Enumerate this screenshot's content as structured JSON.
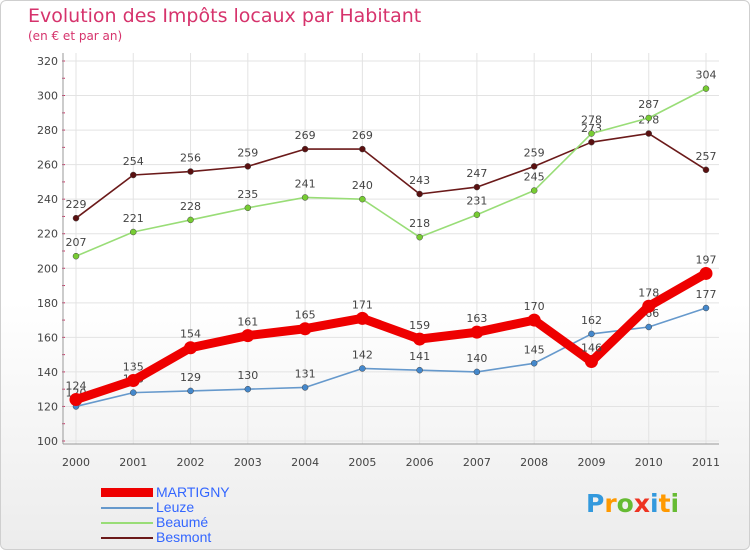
{
  "chart_data": {
    "type": "line",
    "title": "Evolution des Impôts locaux par Habitant",
    "subtitle": "(en € et par an)",
    "xlabel": "",
    "ylabel": "",
    "ylim": [
      100,
      320
    ],
    "y_ticks": [
      100,
      120,
      140,
      160,
      180,
      200,
      220,
      240,
      260,
      280,
      300,
      320
    ],
    "x": [
      "2000",
      "2001",
      "2002",
      "2003",
      "2004",
      "2005",
      "2006",
      "2007",
      "2008",
      "2009",
      "2010",
      "2011"
    ],
    "grid": true,
    "legend_position": "bottom-left",
    "series": [
      {
        "name": "Besmont",
        "color": "#6b1a1a",
        "marker": "#5a1010",
        "values": [
          229,
          254,
          256,
          259,
          269,
          269,
          243,
          247,
          259,
          273,
          278,
          257
        ],
        "labels": [
          "229",
          "254",
          "256",
          "259",
          "269",
          "269",
          "243",
          "247",
          "259",
          "273",
          "278",
          "257"
        ]
      },
      {
        "name": "Beaumé",
        "color": "#99dd77",
        "marker": "#77cc33",
        "values": [
          207,
          221,
          228,
          235,
          241,
          240,
          218,
          231,
          245,
          278,
          287,
          304
        ],
        "labels": [
          "207",
          "221",
          "228",
          "235",
          "241",
          "240",
          "218",
          "231",
          "245",
          "278",
          "287",
          "304"
        ]
      },
      {
        "name": "Leuze",
        "color": "#6699cc",
        "marker": "#4488cc",
        "values": [
          120,
          128,
          129,
          130,
          131,
          142,
          141,
          140,
          145,
          162,
          166,
          177
        ],
        "labels": [
          "120",
          "128",
          "129",
          "130",
          "131",
          "142",
          "141",
          "140",
          "145",
          "162",
          "166",
          "177"
        ]
      },
      {
        "name": "MARTIGNY",
        "color": "#ee0000",
        "marker": "#ee0000",
        "values": [
          124,
          135,
          154,
          161,
          165,
          171,
          159,
          163,
          170,
          146,
          178,
          197
        ],
        "labels": [
          "124",
          "135",
          "154",
          "161",
          "165",
          "171",
          "159",
          "163",
          "170",
          "146",
          "178",
          "197"
        ]
      }
    ],
    "legend": [
      {
        "name": "MARTIGNY",
        "color": "#ee0000",
        "text_color": "#3366ff"
      },
      {
        "name": "Leuze",
        "color": "#6699cc",
        "text_color": "#3366ff"
      },
      {
        "name": "Beaumé",
        "color": "#99dd77",
        "text_color": "#3366ff"
      },
      {
        "name": "Besmont",
        "color": "#6b1a1a",
        "text_color": "#3366ff"
      }
    ]
  },
  "logo": {
    "letters": [
      "P",
      "r",
      "o",
      "x",
      "i",
      "t",
      "i"
    ],
    "colors": [
      "#3399dd",
      "#ff9900",
      "#66bb33",
      "#ee3322",
      "#3399dd",
      "#ff9900",
      "#66bb33"
    ]
  }
}
